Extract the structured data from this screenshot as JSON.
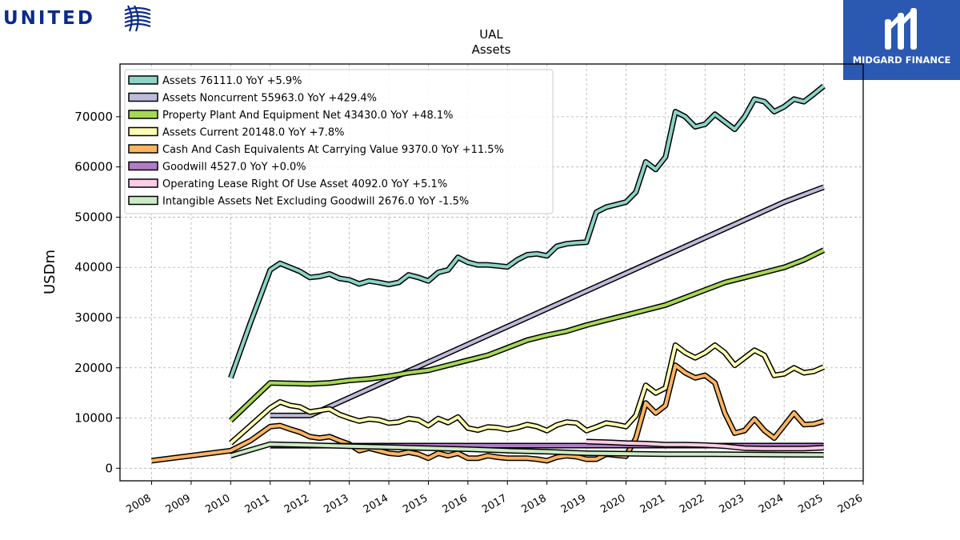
{
  "branding": {
    "left_logo_text": "UNITED",
    "right_logo_text": "MIDGARD FINANCE",
    "right_logo_bg": "#2b58b0",
    "left_logo_color": "#0b2a8a"
  },
  "chart_data": {
    "type": "line",
    "title": "UAL",
    "subtitle": "Assets",
    "ylabel": "USDm",
    "xlabel": "",
    "xlim": [
      2007.2,
      2026.0
    ],
    "ylim": [
      -2500,
      80500
    ],
    "x_ticks": [
      2008,
      2009,
      2010,
      2011,
      2012,
      2013,
      2014,
      2015,
      2016,
      2017,
      2018,
      2019,
      2020,
      2021,
      2022,
      2023,
      2024,
      2025,
      2026
    ],
    "y_ticks": [
      0,
      10000,
      20000,
      30000,
      40000,
      50000,
      60000,
      70000
    ],
    "grid": true,
    "legend_position": "top-left",
    "series": [
      {
        "name": "Assets",
        "legend_label": "Assets  76111.0 YoY +5.9%",
        "color": "#8dd3c7",
        "points": [
          [
            2010.0,
            18000
          ],
          [
            2010.5,
            29000
          ],
          [
            2011.0,
            39500
          ],
          [
            2011.25,
            40800
          ],
          [
            2011.5,
            40000
          ],
          [
            2011.75,
            39200
          ],
          [
            2012.0,
            38000
          ],
          [
            2012.25,
            38200
          ],
          [
            2012.5,
            38700
          ],
          [
            2012.75,
            37800
          ],
          [
            2013.0,
            37500
          ],
          [
            2013.25,
            36700
          ],
          [
            2013.5,
            37300
          ],
          [
            2013.75,
            37000
          ],
          [
            2014.0,
            36600
          ],
          [
            2014.25,
            37000
          ],
          [
            2014.5,
            38500
          ],
          [
            2014.75,
            38000
          ],
          [
            2015.0,
            37300
          ],
          [
            2015.25,
            39000
          ],
          [
            2015.5,
            39500
          ],
          [
            2015.75,
            42000
          ],
          [
            2016.0,
            41000
          ],
          [
            2016.25,
            40500
          ],
          [
            2016.5,
            40500
          ],
          [
            2016.75,
            40300
          ],
          [
            2017.0,
            40100
          ],
          [
            2017.25,
            41500
          ],
          [
            2017.5,
            42500
          ],
          [
            2017.75,
            42700
          ],
          [
            2018.0,
            42300
          ],
          [
            2018.25,
            44200
          ],
          [
            2018.5,
            44700
          ],
          [
            2018.75,
            44900
          ],
          [
            2019.0,
            45000
          ],
          [
            2019.25,
            51000
          ],
          [
            2019.5,
            52000
          ],
          [
            2019.75,
            52500
          ],
          [
            2020.0,
            53000
          ],
          [
            2020.25,
            55000
          ],
          [
            2020.5,
            61000
          ],
          [
            2020.75,
            59500
          ],
          [
            2021.0,
            62000
          ],
          [
            2021.25,
            71000
          ],
          [
            2021.5,
            70000
          ],
          [
            2021.75,
            68000
          ],
          [
            2022.0,
            68500
          ],
          [
            2022.25,
            70500
          ],
          [
            2022.5,
            69000
          ],
          [
            2022.75,
            67500
          ],
          [
            2023.0,
            70000
          ],
          [
            2023.25,
            73500
          ],
          [
            2023.5,
            73000
          ],
          [
            2023.75,
            71000
          ],
          [
            2024.0,
            72000
          ],
          [
            2024.25,
            73500
          ],
          [
            2024.5,
            73000
          ],
          [
            2024.75,
            74500
          ],
          [
            2025.0,
            76111
          ]
        ]
      },
      {
        "name": "Assets Noncurrent",
        "legend_label": "Assets Noncurrent  55963.0 YoY +429.4%",
        "color": "#bebada",
        "points": [
          [
            2011.0,
            10500
          ],
          [
            2012.0,
            10500
          ],
          [
            2024.0,
            53000
          ],
          [
            2024.5,
            54500
          ],
          [
            2025.0,
            55963
          ]
        ]
      },
      {
        "name": "Property Plant And Equipment Net",
        "legend_label": "Property Plant And Equipment Net  43430.0 YoY +48.1%",
        "color": "#a6d854",
        "points": [
          [
            2010.0,
            9500
          ],
          [
            2011.0,
            17000
          ],
          [
            2011.5,
            16900
          ],
          [
            2012.0,
            16800
          ],
          [
            2012.5,
            17000
          ],
          [
            2013.0,
            17500
          ],
          [
            2013.5,
            17800
          ],
          [
            2014.0,
            18300
          ],
          [
            2014.5,
            19000
          ],
          [
            2015.0,
            19500
          ],
          [
            2015.5,
            20500
          ],
          [
            2016.0,
            21500
          ],
          [
            2016.5,
            22500
          ],
          [
            2017.0,
            24000
          ],
          [
            2017.5,
            25500
          ],
          [
            2018.0,
            26500
          ],
          [
            2018.5,
            27300
          ],
          [
            2019.0,
            28500
          ],
          [
            2019.5,
            29500
          ],
          [
            2020.0,
            30500
          ],
          [
            2020.5,
            31500
          ],
          [
            2021.0,
            32500
          ],
          [
            2021.5,
            34000
          ],
          [
            2022.0,
            35500
          ],
          [
            2022.5,
            37000
          ],
          [
            2023.0,
            38000
          ],
          [
            2023.5,
            39000
          ],
          [
            2024.0,
            40000
          ],
          [
            2024.5,
            41500
          ],
          [
            2025.0,
            43430
          ]
        ]
      },
      {
        "name": "Assets Current",
        "legend_label": "Assets Current  20148.0 YoY +7.8%",
        "color": "#ffffb3",
        "points": [
          [
            2010.0,
            5000
          ],
          [
            2010.5,
            8500
          ],
          [
            2011.0,
            12000
          ],
          [
            2011.25,
            13200
          ],
          [
            2011.5,
            12500
          ],
          [
            2011.75,
            12200
          ],
          [
            2012.0,
            11200
          ],
          [
            2012.25,
            11500
          ],
          [
            2012.5,
            11800
          ],
          [
            2012.75,
            10700
          ],
          [
            2013.0,
            10000
          ],
          [
            2013.25,
            9400
          ],
          [
            2013.5,
            9800
          ],
          [
            2013.75,
            9600
          ],
          [
            2014.0,
            9000
          ],
          [
            2014.25,
            9200
          ],
          [
            2014.5,
            9900
          ],
          [
            2014.75,
            9600
          ],
          [
            2015.0,
            8500
          ],
          [
            2015.25,
            9900
          ],
          [
            2015.5,
            9100
          ],
          [
            2015.75,
            10200
          ],
          [
            2016.0,
            8000
          ],
          [
            2016.25,
            7600
          ],
          [
            2016.5,
            8200
          ],
          [
            2016.75,
            8100
          ],
          [
            2017.0,
            7700
          ],
          [
            2017.25,
            8100
          ],
          [
            2017.5,
            8700
          ],
          [
            2017.75,
            8300
          ],
          [
            2018.0,
            7500
          ],
          [
            2018.25,
            8600
          ],
          [
            2018.5,
            9200
          ],
          [
            2018.75,
            9000
          ],
          [
            2019.0,
            7500
          ],
          [
            2019.25,
            8200
          ],
          [
            2019.5,
            9000
          ],
          [
            2019.75,
            8700
          ],
          [
            2020.0,
            8300
          ],
          [
            2020.25,
            10500
          ],
          [
            2020.5,
            16500
          ],
          [
            2020.75,
            15000
          ],
          [
            2021.0,
            16000
          ],
          [
            2021.25,
            24500
          ],
          [
            2021.5,
            23000
          ],
          [
            2021.75,
            22000
          ],
          [
            2022.0,
            23000
          ],
          [
            2022.25,
            24500
          ],
          [
            2022.5,
            23000
          ],
          [
            2022.75,
            20500
          ],
          [
            2023.0,
            22000
          ],
          [
            2023.25,
            23500
          ],
          [
            2023.5,
            22500
          ],
          [
            2023.75,
            18500
          ],
          [
            2024.0,
            18800
          ],
          [
            2024.25,
            20000
          ],
          [
            2024.5,
            19000
          ],
          [
            2024.75,
            19300
          ],
          [
            2025.0,
            20148
          ]
        ]
      },
      {
        "name": "Cash And Cash Equivalents At Carrying Value",
        "legend_label": "Cash And Cash Equivalents At Carrying Value  9370.0 YoY +11.5%",
        "color": "#fdb462",
        "points": [
          [
            2008.0,
            1500
          ],
          [
            2009.0,
            2500
          ],
          [
            2010.0,
            3500
          ],
          [
            2010.5,
            5500
          ],
          [
            2011.0,
            8300
          ],
          [
            2011.25,
            8500
          ],
          [
            2011.5,
            7800
          ],
          [
            2011.75,
            7200
          ],
          [
            2012.0,
            6300
          ],
          [
            2012.25,
            6000
          ],
          [
            2012.5,
            6300
          ],
          [
            2012.75,
            5500
          ],
          [
            2013.0,
            4800
          ],
          [
            2013.25,
            3500
          ],
          [
            2013.5,
            4000
          ],
          [
            2013.75,
            3500
          ],
          [
            2014.0,
            3000
          ],
          [
            2014.25,
            2800
          ],
          [
            2014.5,
            3200
          ],
          [
            2014.75,
            2800
          ],
          [
            2015.0,
            2000
          ],
          [
            2015.25,
            3000
          ],
          [
            2015.5,
            2500
          ],
          [
            2015.75,
            3000
          ],
          [
            2016.0,
            2000
          ],
          [
            2016.25,
            2000
          ],
          [
            2016.5,
            2500
          ],
          [
            2016.75,
            2200
          ],
          [
            2017.0,
            2000
          ],
          [
            2017.25,
            2000
          ],
          [
            2017.5,
            2000
          ],
          [
            2017.75,
            1800
          ],
          [
            2018.0,
            1500
          ],
          [
            2018.25,
            2200
          ],
          [
            2018.5,
            2500
          ],
          [
            2018.75,
            2300
          ],
          [
            2019.0,
            1800
          ],
          [
            2019.25,
            1800
          ],
          [
            2019.5,
            2800
          ],
          [
            2019.75,
            2600
          ],
          [
            2020.0,
            2400
          ],
          [
            2020.25,
            6000
          ],
          [
            2020.5,
            13000
          ],
          [
            2020.75,
            11000
          ],
          [
            2021.0,
            12500
          ],
          [
            2021.25,
            20500
          ],
          [
            2021.5,
            19000
          ],
          [
            2021.75,
            18000
          ],
          [
            2022.0,
            18500
          ],
          [
            2022.25,
            17000
          ],
          [
            2022.5,
            11000
          ],
          [
            2022.75,
            7000
          ],
          [
            2023.0,
            7500
          ],
          [
            2023.25,
            9800
          ],
          [
            2023.5,
            7500
          ],
          [
            2023.75,
            6000
          ],
          [
            2024.0,
            8500
          ],
          [
            2024.25,
            11000
          ],
          [
            2024.5,
            8700
          ],
          [
            2024.75,
            8800
          ],
          [
            2025.0,
            9370
          ]
        ]
      },
      {
        "name": "Goodwill",
        "legend_label": "Goodwill  4527.0 YoY +0.0%",
        "color": "#b07cc6",
        "points": [
          [
            2011.0,
            4500
          ],
          [
            2025.0,
            4527
          ]
        ]
      },
      {
        "name": "Operating Lease Right Of Use Asset",
        "legend_label": "Operating Lease Right Of Use Asset  4092.0 YoY +5.1%",
        "color": "#fccde5",
        "points": [
          [
            2019.0,
            5300
          ],
          [
            2019.5,
            5200
          ],
          [
            2020.0,
            5000
          ],
          [
            2020.5,
            4900
          ],
          [
            2021.0,
            4700
          ],
          [
            2021.5,
            4700
          ],
          [
            2022.0,
            4600
          ],
          [
            2022.5,
            4400
          ],
          [
            2023.0,
            4000
          ],
          [
            2023.5,
            3900
          ],
          [
            2024.0,
            3900
          ],
          [
            2024.5,
            3900
          ],
          [
            2025.0,
            4092
          ]
        ]
      },
      {
        "name": "Intangible Assets Net Excluding Goodwill",
        "legend_label": "Intangible Assets Net Excluding Goodwill  2676.0 YoY -1.5%",
        "color": "#ccebc5",
        "points": [
          [
            2010.0,
            2500
          ],
          [
            2011.0,
            4800
          ],
          [
            2012.0,
            4600
          ],
          [
            2013.0,
            4400
          ],
          [
            2014.0,
            4200
          ],
          [
            2015.0,
            4000
          ],
          [
            2016.0,
            3800
          ],
          [
            2017.0,
            3500
          ],
          [
            2018.0,
            3300
          ],
          [
            2019.0,
            3000
          ],
          [
            2020.0,
            2900
          ],
          [
            2021.0,
            2800
          ],
          [
            2022.0,
            2800
          ],
          [
            2023.0,
            2750
          ],
          [
            2024.0,
            2700
          ],
          [
            2025.0,
            2676
          ]
        ]
      }
    ]
  }
}
